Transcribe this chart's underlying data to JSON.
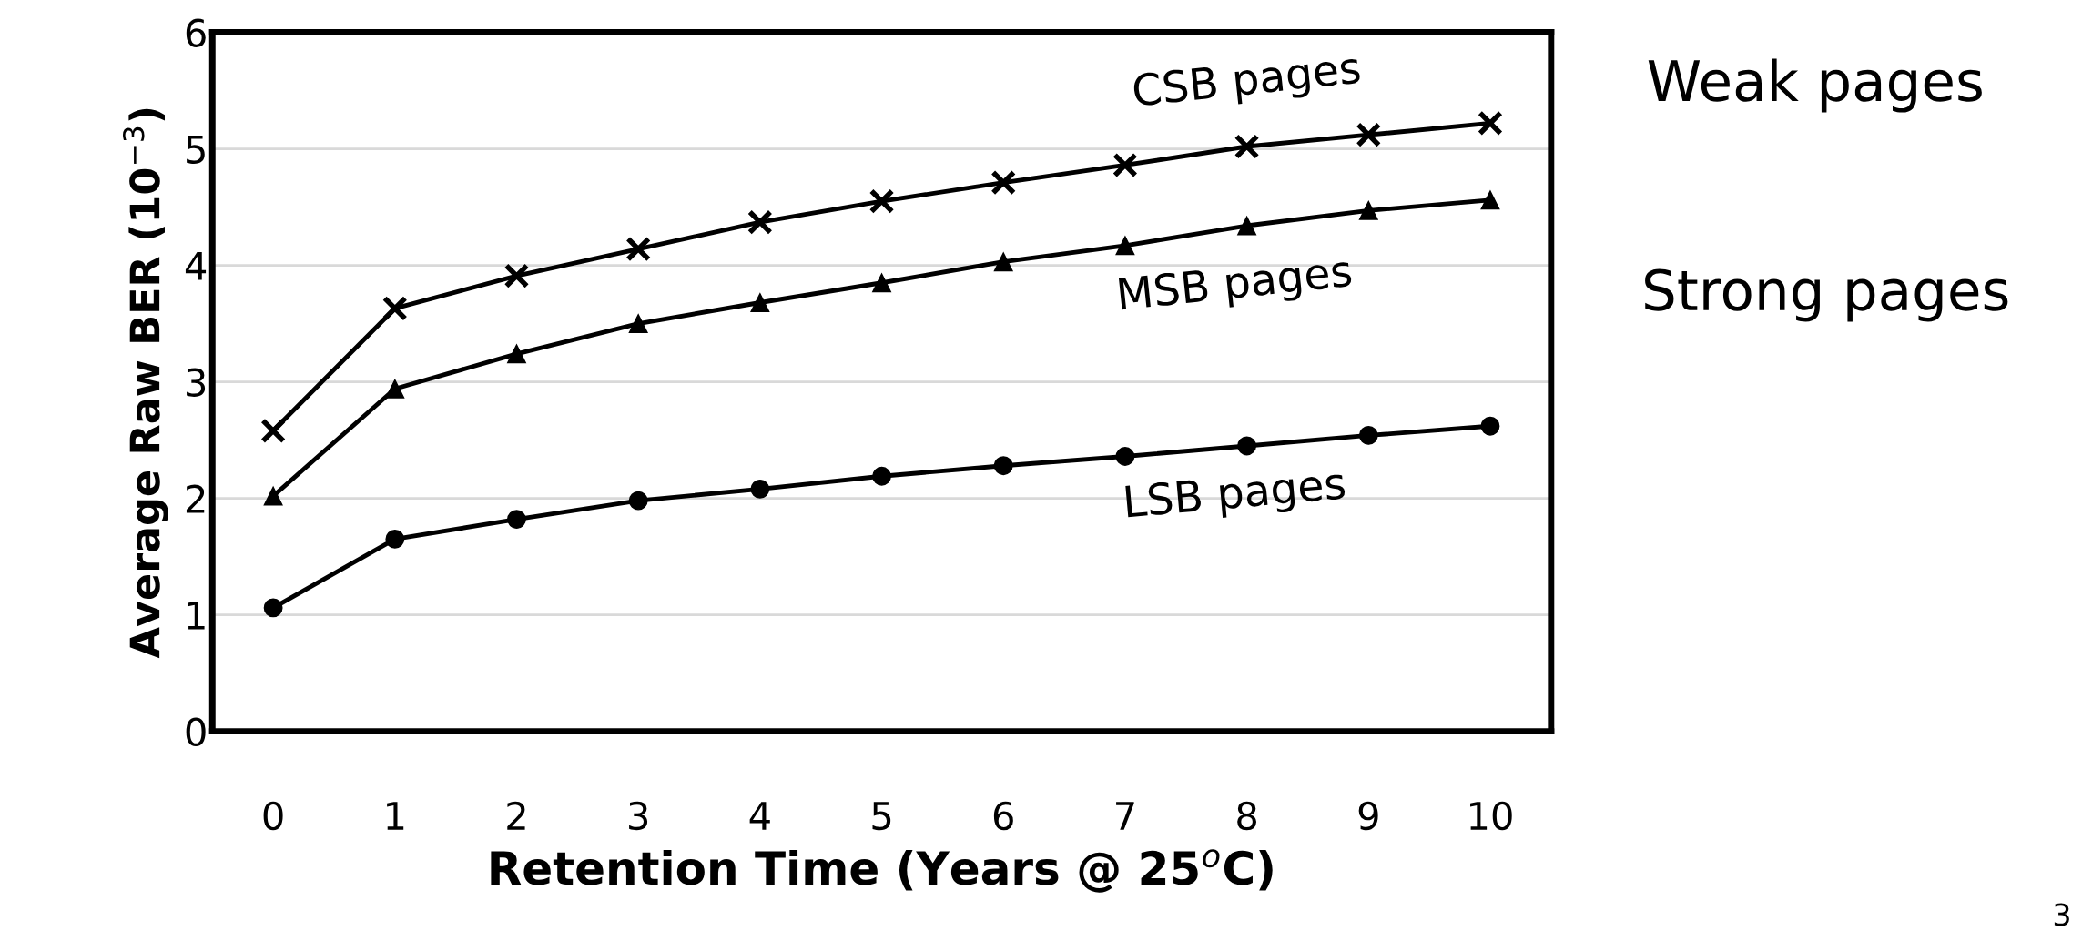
{
  "chart_data": {
    "type": "line",
    "xlabel": "Retention Time (Years @ 25$^{o}$C)",
    "ylabel": "Average Raw BER (10$^{−3}$)",
    "categories": [
      "0",
      "1",
      "2",
      "3",
      "4",
      "5",
      "6",
      "7",
      "8",
      "9",
      "10"
    ],
    "series": [
      {
        "name": "CSB pages",
        "color": "#000000",
        "marker": "cross",
        "values": [
          2.58,
          3.63,
          3.91,
          4.14,
          4.37,
          4.55,
          4.71,
          4.86,
          5.02,
          5.12,
          5.22
        ]
      },
      {
        "name": "MSB pages",
        "color": "#000000",
        "marker": "triangle",
        "values": [
          2.02,
          2.94,
          3.24,
          3.5,
          3.68,
          3.85,
          4.03,
          4.17,
          4.34,
          4.47,
          4.56
        ]
      },
      {
        "name": "LSB pages",
        "color": "#000000",
        "marker": "circle",
        "values": [
          1.06,
          1.65,
          1.82,
          1.98,
          2.08,
          2.19,
          2.28,
          2.36,
          2.45,
          2.54,
          2.62
        ]
      }
    ],
    "ylim": [
      0,
      6
    ],
    "yticks": [
      0,
      1,
      2,
      3,
      4,
      5,
      6
    ],
    "grid": "y",
    "legend": false,
    "line_style": "solid",
    "annotations": [
      "Weak pages",
      "Strong pages",
      "3"
    ]
  }
}
